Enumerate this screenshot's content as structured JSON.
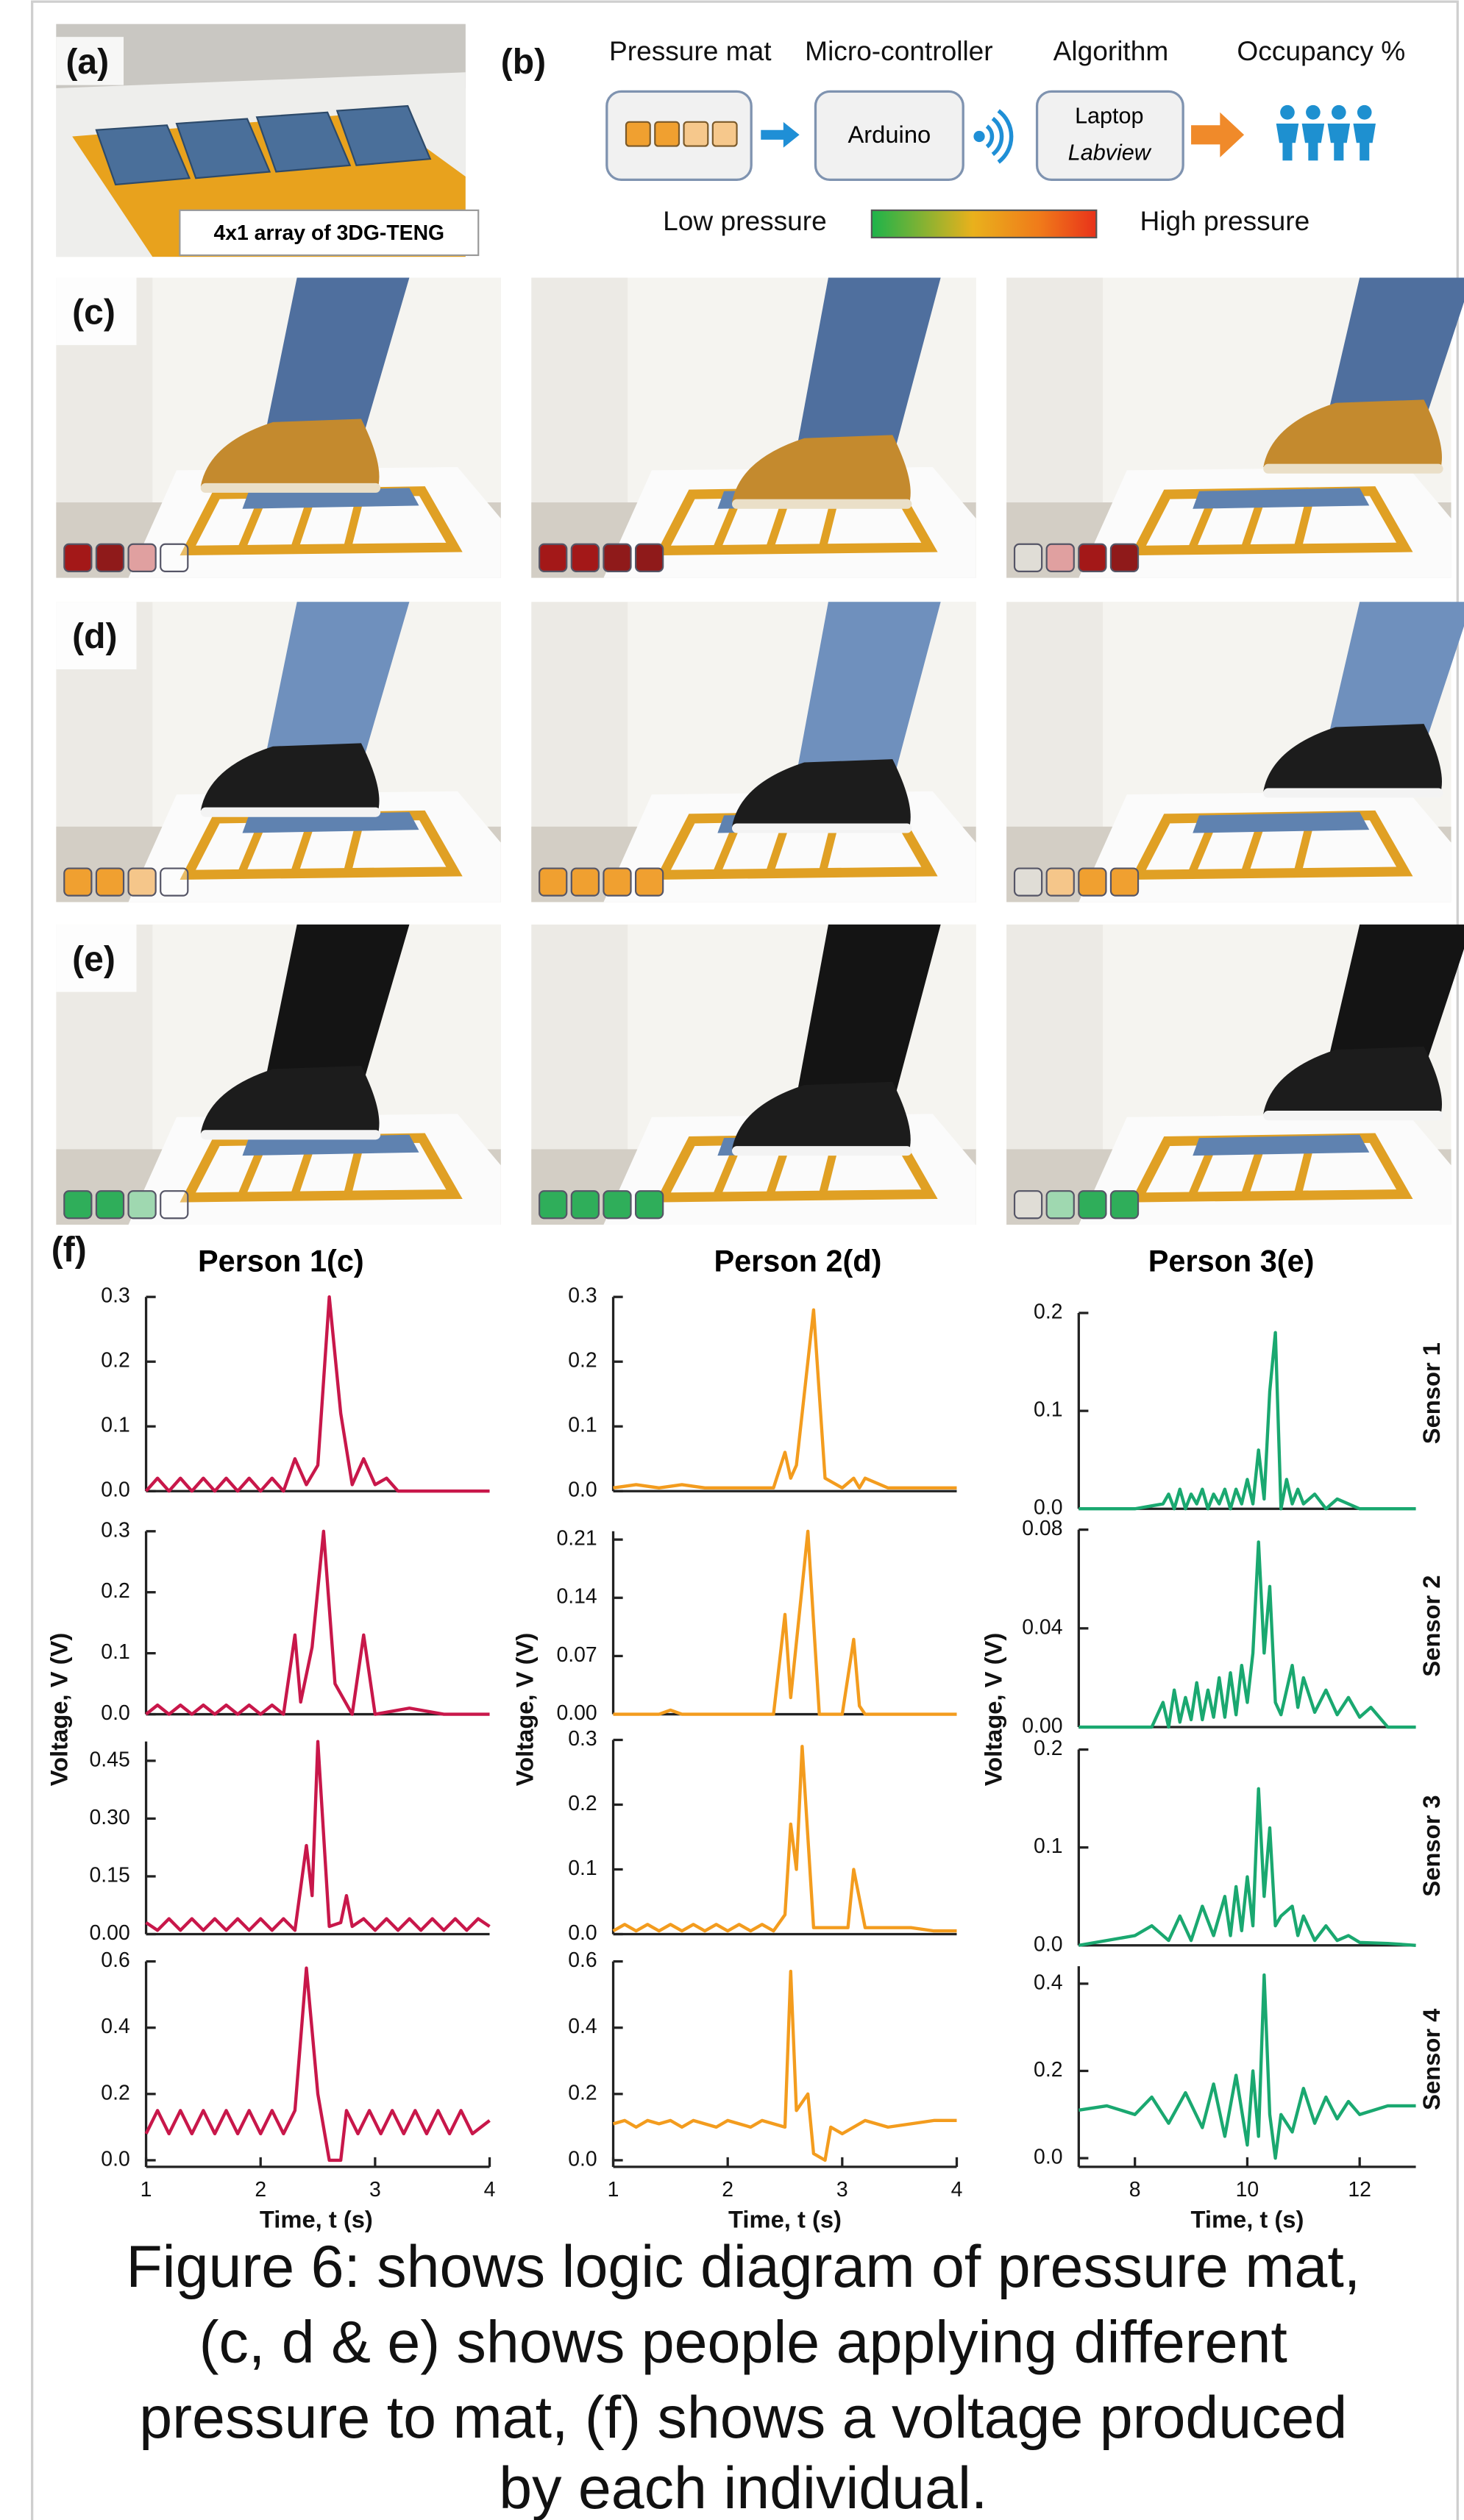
{
  "figure": {
    "panel_labels": [
      "(a)",
      "(b)",
      "(c)",
      "(d)",
      "(e)",
      "(f)"
    ],
    "photo_caption": "4x1 array of 3DG-TENG",
    "diagram": {
      "headers": [
        "Pressure mat",
        "Micro-controller",
        "Algorithm",
        "Occupancy %"
      ],
      "arduino": "Arduino",
      "laptop": "Laptop",
      "labview": "Labview",
      "low": "Low pressure",
      "high": "High pressure"
    },
    "columns": [
      "Person 1(c)",
      "Person 2(d)",
      "Person 3(e)"
    ],
    "y_labels": [
      "Voltage, V (V)",
      "Voltage, V (V)",
      "Voltage, V (V)"
    ],
    "x_labels": [
      "Time, t (s)",
      "Time, t (s)",
      "Time, t (s)"
    ],
    "sensor_labels": [
      "Sensor 1",
      "Sensor 2",
      "Sensor 3",
      "Sensor 4"
    ],
    "caption": [
      "Figure 6: shows logic diagram of pressure mat,",
      "(c, d & e) shows people applying different",
      "pressure to mat, (f) shows a voltage produced",
      "by each individual."
    ]
  },
  "chart_data": [
    {
      "type": "line",
      "color": "#c8174a",
      "xlim": [
        1,
        4
      ],
      "ylim": [
        0,
        0.3
      ],
      "yticks": [
        {
          "value": 0,
          "label": "0.0"
        },
        0.1,
        0.2,
        0.3
      ],
      "x": [
        1,
        1.1,
        1.2,
        1.3,
        1.4,
        1.5,
        1.6,
        1.7,
        1.8,
        1.9,
        2,
        2.1,
        2.2,
        2.3,
        2.4,
        2.5,
        2.6,
        2.7,
        2.8,
        2.9,
        3,
        3.1,
        3.2,
        3.5,
        4
      ],
      "values": [
        0,
        0.02,
        0,
        0.02,
        0,
        0.02,
        0,
        0.02,
        0,
        0.02,
        0,
        0.02,
        0,
        0.05,
        0.01,
        0.04,
        0.3,
        0.12,
        0.01,
        0.05,
        0.01,
        0.02,
        0,
        0,
        0
      ]
    },
    {
      "type": "line",
      "color": "#c8174a",
      "xlim": [
        1,
        4
      ],
      "ylim": [
        0,
        0.3
      ],
      "yticks": [
        {
          "value": 0,
          "label": "0.0"
        },
        0.1,
        0.2,
        0.3
      ],
      "x": [
        1,
        1.1,
        1.2,
        1.3,
        1.4,
        1.5,
        1.6,
        1.7,
        1.8,
        1.9,
        2,
        2.1,
        2.2,
        2.3,
        2.35,
        2.45,
        2.55,
        2.65,
        2.8,
        2.9,
        3,
        3.3,
        3.6,
        4
      ],
      "values": [
        0,
        0.015,
        0,
        0.015,
        0,
        0.015,
        0,
        0.015,
        0,
        0.015,
        0,
        0.015,
        0,
        0.13,
        0.02,
        0.11,
        0.3,
        0.05,
        0,
        0.13,
        0,
        0.01,
        0,
        0
      ]
    },
    {
      "type": "line",
      "color": "#c8174a",
      "xlim": [
        1,
        4
      ],
      "ylim": [
        0,
        0.5
      ],
      "yticks": [
        {
          "value": 0,
          "label": "0.00"
        },
        0.15,
        {
          "value": 0.3,
          "label": "0.30"
        },
        0.45
      ],
      "x": [
        1,
        1.1,
        1.2,
        1.3,
        1.4,
        1.5,
        1.6,
        1.7,
        1.8,
        1.9,
        2,
        2.1,
        2.2,
        2.3,
        2.4,
        2.45,
        2.5,
        2.6,
        2.7,
        2.75,
        2.8,
        2.9,
        3,
        3.1,
        3.2,
        3.3,
        3.4,
        3.5,
        3.6,
        3.7,
        3.8,
        3.9,
        4
      ],
      "values": [
        0.03,
        0.01,
        0.04,
        0.01,
        0.04,
        0.01,
        0.04,
        0.01,
        0.04,
        0.01,
        0.04,
        0.01,
        0.04,
        0.01,
        0.23,
        0.1,
        0.5,
        0.02,
        0.03,
        0.1,
        0.02,
        0.04,
        0.01,
        0.04,
        0.01,
        0.04,
        0.01,
        0.04,
        0.01,
        0.04,
        0.01,
        0.04,
        0.02
      ]
    },
    {
      "type": "line",
      "color": "#c8174a",
      "xlim": [
        1,
        4
      ],
      "ylim": [
        -0.02,
        0.6
      ],
      "yticks": [
        {
          "value": 0,
          "label": "0.0"
        },
        0.2,
        0.4,
        0.6
      ],
      "xticks": [
        1,
        2,
        3,
        4
      ],
      "x": [
        1,
        1.1,
        1.2,
        1.3,
        1.4,
        1.5,
        1.6,
        1.7,
        1.8,
        1.9,
        2,
        2.1,
        2.2,
        2.3,
        2.4,
        2.5,
        2.6,
        2.7,
        2.75,
        2.85,
        2.95,
        3.05,
        3.15,
        3.25,
        3.35,
        3.45,
        3.55,
        3.65,
        3.75,
        3.85,
        4
      ],
      "values": [
        0.08,
        0.15,
        0.08,
        0.15,
        0.08,
        0.15,
        0.08,
        0.15,
        0.08,
        0.15,
        0.08,
        0.15,
        0.08,
        0.15,
        0.58,
        0.2,
        0,
        0,
        0.15,
        0.08,
        0.15,
        0.08,
        0.15,
        0.08,
        0.15,
        0.08,
        0.15,
        0.08,
        0.15,
        0.08,
        0.12
      ]
    },
    {
      "type": "line",
      "color": "#f39c1e",
      "xlim": [
        1,
        4
      ],
      "ylim": [
        0,
        0.3
      ],
      "yticks": [
        {
          "value": 0,
          "label": "0.0"
        },
        0.1,
        0.2,
        0.3
      ],
      "x": [
        1,
        1.2,
        1.4,
        1.6,
        1.8,
        2,
        2.2,
        2.4,
        2.5,
        2.55,
        2.6,
        2.75,
        2.85,
        3,
        3.1,
        3.15,
        3.2,
        3.4,
        3.7,
        4
      ],
      "values": [
        0.005,
        0.01,
        0.005,
        0.01,
        0.005,
        0.005,
        0.005,
        0.005,
        0.06,
        0.02,
        0.04,
        0.28,
        0.02,
        0.005,
        0.02,
        0.005,
        0.02,
        0.005,
        0.005,
        0.005
      ]
    },
    {
      "type": "line",
      "color": "#f39c1e",
      "xlim": [
        1,
        4
      ],
      "ylim": [
        0,
        0.22
      ],
      "yticks": [
        {
          "value": 0,
          "label": "0.00"
        },
        0.07,
        0.14,
        0.21
      ],
      "x": [
        1,
        1.4,
        1.5,
        1.6,
        2,
        2.4,
        2.5,
        2.55,
        2.7,
        2.8,
        3,
        3.1,
        3.15,
        3.2,
        3.5,
        4
      ],
      "values": [
        0,
        0,
        0.005,
        0,
        0,
        0,
        0.12,
        0.02,
        0.22,
        0,
        0,
        0.09,
        0.01,
        0,
        0,
        0
      ]
    },
    {
      "type": "line",
      "color": "#f39c1e",
      "xlim": [
        1,
        4
      ],
      "ylim": [
        0,
        0.3
      ],
      "yticks": [
        {
          "value": 0,
          "label": "0.0"
        },
        0.1,
        0.2,
        0.3
      ],
      "x": [
        1,
        1.1,
        1.2,
        1.3,
        1.4,
        1.5,
        1.6,
        1.7,
        1.8,
        1.9,
        2,
        2.1,
        2.2,
        2.3,
        2.4,
        2.5,
        2.55,
        2.6,
        2.65,
        2.75,
        2.9,
        3.05,
        3.1,
        3.2,
        3.4,
        3.6,
        3.8,
        4
      ],
      "values": [
        0.005,
        0.015,
        0.005,
        0.015,
        0.005,
        0.015,
        0.005,
        0.015,
        0.005,
        0.015,
        0.005,
        0.015,
        0.005,
        0.015,
        0.005,
        0.03,
        0.17,
        0.1,
        0.29,
        0.01,
        0.01,
        0.01,
        0.1,
        0.01,
        0.01,
        0.01,
        0.005,
        0.005
      ]
    },
    {
      "type": "line",
      "color": "#f39c1e",
      "xlim": [
        1,
        4
      ],
      "ylim": [
        -0.02,
        0.6
      ],
      "yticks": [
        {
          "value": 0,
          "label": "0.0"
        },
        0.2,
        0.4,
        0.6
      ],
      "xticks": [
        1,
        2,
        3,
        4
      ],
      "x": [
        1,
        1.1,
        1.2,
        1.3,
        1.4,
        1.5,
        1.6,
        1.7,
        1.8,
        1.9,
        2,
        2.1,
        2.2,
        2.3,
        2.4,
        2.5,
        2.55,
        2.6,
        2.7,
        2.75,
        2.85,
        2.9,
        3,
        3.2,
        3.4,
        3.6,
        3.8,
        4
      ],
      "values": [
        0.11,
        0.12,
        0.1,
        0.12,
        0.11,
        0.12,
        0.1,
        0.12,
        0.11,
        0.1,
        0.12,
        0.11,
        0.1,
        0.12,
        0.11,
        0.1,
        0.57,
        0.15,
        0.2,
        0.02,
        0,
        0.1,
        0.08,
        0.12,
        0.1,
        0.11,
        0.12,
        0.12
      ]
    },
    {
      "type": "line",
      "color": "#1aa870",
      "xlim": [
        7,
        13
      ],
      "ylim": [
        0,
        0.2
      ],
      "yticks": [
        {
          "value": 0,
          "label": "0.0"
        },
        0.1,
        0.2
      ],
      "x": [
        7,
        8,
        8.5,
        8.6,
        8.7,
        8.8,
        8.9,
        9,
        9.1,
        9.2,
        9.3,
        9.4,
        9.5,
        9.6,
        9.7,
        9.8,
        9.9,
        10,
        10.1,
        10.2,
        10.3,
        10.4,
        10.5,
        10.6,
        10.7,
        10.8,
        10.9,
        11,
        11.2,
        11.4,
        11.6,
        12,
        13
      ],
      "values": [
        0,
        0,
        0.005,
        0.015,
        0,
        0.02,
        0,
        0.015,
        0.005,
        0.02,
        0,
        0.015,
        0.005,
        0.02,
        0,
        0.02,
        0.005,
        0.03,
        0.005,
        0.06,
        0.01,
        0.12,
        0.18,
        0,
        0.03,
        0.005,
        0.02,
        0.005,
        0.015,
        0,
        0.01,
        0,
        0
      ]
    },
    {
      "type": "line",
      "color": "#1aa870",
      "xlim": [
        7,
        13
      ],
      "ylim": [
        0,
        0.08
      ],
      "yticks": [
        {
          "value": 0,
          "label": "0.00"
        },
        0.04,
        0.08
      ],
      "x": [
        7,
        8.3,
        8.5,
        8.6,
        8.7,
        8.8,
        8.9,
        9,
        9.1,
        9.2,
        9.3,
        9.4,
        9.5,
        9.6,
        9.7,
        9.8,
        9.9,
        10,
        10.1,
        10.2,
        10.3,
        10.4,
        10.5,
        10.6,
        10.7,
        10.8,
        10.9,
        11,
        11.2,
        11.4,
        11.6,
        11.8,
        12,
        12.2,
        12.5,
        13
      ],
      "values": [
        0,
        0,
        0.01,
        0,
        0.015,
        0.002,
        0.012,
        0.003,
        0.018,
        0.003,
        0.015,
        0.004,
        0.02,
        0.004,
        0.022,
        0.005,
        0.025,
        0.01,
        0.03,
        0.075,
        0.03,
        0.057,
        0.01,
        0.005,
        0.015,
        0.025,
        0.008,
        0.02,
        0.006,
        0.015,
        0.005,
        0.012,
        0.004,
        0.008,
        0,
        0
      ]
    },
    {
      "type": "line",
      "color": "#1aa870",
      "xlim": [
        7,
        13
      ],
      "ylim": [
        0,
        0.2
      ],
      "yticks": [
        {
          "value": 0,
          "label": "0.0"
        },
        0.1,
        0.2
      ],
      "x": [
        7,
        7.5,
        8,
        8.3,
        8.6,
        8.8,
        9,
        9.2,
        9.4,
        9.6,
        9.7,
        9.8,
        9.9,
        10,
        10.1,
        10.2,
        10.3,
        10.4,
        10.5,
        10.6,
        10.8,
        10.9,
        11,
        11.2,
        11.4,
        11.6,
        11.8,
        12,
        12.5,
        13
      ],
      "values": [
        0,
        0.005,
        0.01,
        0.02,
        0.005,
        0.03,
        0.005,
        0.04,
        0.01,
        0.05,
        0.01,
        0.06,
        0.015,
        0.07,
        0.02,
        0.16,
        0.05,
        0.12,
        0.02,
        0.03,
        0.04,
        0.01,
        0.03,
        0.005,
        0.02,
        0.005,
        0.01,
        0.003,
        0.002,
        0
      ]
    },
    {
      "type": "line",
      "color": "#1aa870",
      "xlim": [
        7,
        13
      ],
      "ylim": [
        -0.02,
        0.44
      ],
      "yticks": [
        {
          "value": 0,
          "label": "0.0"
        },
        0.2,
        0.4
      ],
      "xticks": [
        8,
        10,
        12
      ],
      "x": [
        7,
        7.5,
        8,
        8.3,
        8.6,
        8.9,
        9.2,
        9.4,
        9.6,
        9.8,
        10,
        10.1,
        10.2,
        10.3,
        10.4,
        10.5,
        10.6,
        10.8,
        11,
        11.2,
        11.4,
        11.6,
        11.8,
        12,
        12.5,
        13
      ],
      "values": [
        0.11,
        0.12,
        0.1,
        0.14,
        0.08,
        0.15,
        0.07,
        0.17,
        0.05,
        0.19,
        0.03,
        0.2,
        0.05,
        0.42,
        0.1,
        0,
        0.1,
        0.06,
        0.16,
        0.08,
        0.14,
        0.09,
        0.13,
        0.1,
        0.12,
        0.12
      ]
    }
  ]
}
